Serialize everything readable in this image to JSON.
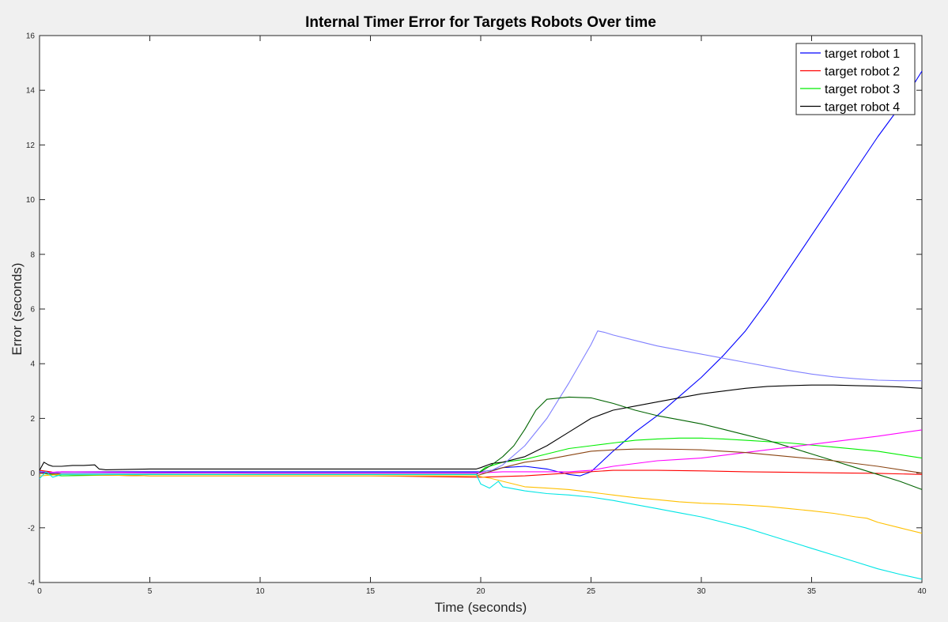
{
  "chart_data": {
    "type": "line",
    "title": "Internal Timer Error for Targets Robots Over time",
    "xlabel": "Time (seconds)",
    "ylabel": "Error (seconds)",
    "xlim": [
      0,
      40
    ],
    "ylim": [
      -4,
      16
    ],
    "xticks": [
      0,
      5,
      10,
      15,
      20,
      25,
      30,
      35,
      40
    ],
    "yticks": [
      -4,
      -2,
      0,
      2,
      4,
      6,
      8,
      10,
      12,
      14,
      16
    ],
    "grid": false,
    "legend_position": "top-right",
    "legend": [
      "target robot 1",
      "target robot 2",
      "target robot 3",
      "target robot 4"
    ],
    "series": [
      {
        "name": "target robot 1",
        "color": "#0000ff",
        "x": [
          0,
          0.5,
          1,
          2,
          5,
          10,
          15,
          19.5,
          20,
          20.5,
          21,
          22,
          23,
          23.5,
          24,
          24.5,
          25,
          26,
          27,
          28,
          29,
          30,
          31,
          32,
          33,
          34,
          35,
          36,
          37,
          38,
          39,
          40
        ],
        "y": [
          0.05,
          0.02,
          0.05,
          0.05,
          0.05,
          0.05,
          0.05,
          0.05,
          0.05,
          0.1,
          0.2,
          0.25,
          0.15,
          0.05,
          -0.05,
          -0.1,
          0.05,
          0.8,
          1.5,
          2.1,
          2.8,
          3.5,
          4.3,
          5.2,
          6.3,
          7.5,
          8.7,
          9.9,
          11.1,
          12.3,
          13.4,
          14.7
        ]
      },
      {
        "name": "target robot 2",
        "color": "#ff0000",
        "x": [
          0,
          0.5,
          1,
          5,
          10,
          15,
          20,
          22,
          24,
          26,
          28,
          30,
          32,
          34,
          36,
          38,
          40
        ],
        "y": [
          0.1,
          0.05,
          -0.05,
          -0.1,
          -0.1,
          -0.1,
          -0.15,
          -0.1,
          0.0,
          0.1,
          0.1,
          0.08,
          0.05,
          0.03,
          0.01,
          -0.01,
          -0.05
        ]
      },
      {
        "name": "target robot 3",
        "color": "#00ee00",
        "x": [
          0,
          0.5,
          1,
          5,
          10,
          15,
          19.8,
          20.2,
          21,
          22,
          23,
          24,
          25,
          26,
          27,
          28,
          29,
          30,
          31,
          32,
          34,
          36,
          38,
          40
        ],
        "y": [
          0.0,
          -0.05,
          -0.1,
          -0.05,
          -0.05,
          -0.05,
          -0.05,
          0.2,
          0.4,
          0.5,
          0.7,
          0.9,
          1.0,
          1.1,
          1.2,
          1.25,
          1.28,
          1.28,
          1.25,
          1.2,
          1.1,
          0.95,
          0.8,
          0.55
        ]
      },
      {
        "name": "target robot 4",
        "color": "#000000",
        "x": [
          0,
          0.2,
          0.4,
          0.6,
          1,
          1.5,
          2,
          2.5,
          2.7,
          3,
          5,
          10,
          15,
          19.8,
          20,
          20.5,
          21,
          22,
          23,
          24,
          25,
          26,
          27,
          28,
          29,
          30,
          31,
          32,
          33,
          34,
          35,
          36,
          37,
          38,
          39,
          40
        ],
        "y": [
          0.1,
          0.4,
          0.3,
          0.25,
          0.25,
          0.28,
          0.28,
          0.3,
          0.15,
          0.12,
          0.15,
          0.15,
          0.15,
          0.15,
          0.2,
          0.35,
          0.4,
          0.6,
          1.0,
          1.5,
          2.0,
          2.3,
          2.45,
          2.6,
          2.75,
          2.9,
          3.0,
          3.1,
          3.17,
          3.2,
          3.22,
          3.22,
          3.2,
          3.18,
          3.15,
          3.1
        ]
      },
      {
        "color": "#8080ff",
        "x": [
          0,
          1,
          5,
          10,
          15,
          19.8,
          20.5,
          21,
          22,
          23,
          24,
          25,
          25.3,
          25.6,
          26,
          27,
          28,
          29,
          30,
          31,
          32,
          33,
          34,
          35,
          36,
          37,
          38,
          39,
          40
        ],
        "y": [
          0.0,
          0.0,
          0.0,
          0.02,
          0.02,
          0.02,
          0.1,
          0.3,
          1.0,
          2.0,
          3.3,
          4.7,
          5.2,
          5.15,
          5.05,
          4.85,
          4.65,
          4.5,
          4.35,
          4.2,
          4.05,
          3.9,
          3.75,
          3.62,
          3.52,
          3.45,
          3.4,
          3.38,
          3.38
        ]
      },
      {
        "color": "#006400",
        "x": [
          0,
          1,
          5,
          10,
          15,
          19.8,
          20.5,
          21,
          21.5,
          22,
          22.5,
          23,
          24,
          25,
          26,
          27,
          28,
          29,
          30,
          31,
          32,
          33,
          34,
          35,
          36,
          37,
          38,
          39,
          40
        ],
        "y": [
          0.0,
          -0.05,
          -0.05,
          -0.05,
          -0.05,
          -0.05,
          0.3,
          0.6,
          1.0,
          1.6,
          2.3,
          2.7,
          2.78,
          2.75,
          2.55,
          2.3,
          2.1,
          1.95,
          1.8,
          1.6,
          1.4,
          1.2,
          0.95,
          0.7,
          0.45,
          0.2,
          -0.05,
          -0.3,
          -0.6
        ]
      },
      {
        "color": "#ff00ff",
        "x": [
          0,
          1,
          5,
          10,
          15,
          19.8,
          21,
          22,
          23,
          24,
          25,
          26,
          27,
          28,
          29,
          30,
          31,
          32,
          34,
          36,
          38,
          40
        ],
        "y": [
          0.0,
          0.05,
          0.02,
          0.0,
          0.0,
          0.0,
          0.05,
          0.05,
          0.05,
          0.05,
          0.1,
          0.25,
          0.35,
          0.45,
          0.5,
          0.55,
          0.65,
          0.75,
          0.95,
          1.15,
          1.35,
          1.58
        ]
      },
      {
        "color": "#8b4513",
        "x": [
          0,
          1,
          5,
          10,
          15,
          19.8,
          21,
          22,
          23,
          24,
          25,
          26,
          27,
          28,
          29,
          30,
          31,
          32,
          34,
          36,
          38,
          40
        ],
        "y": [
          0.0,
          -0.05,
          -0.1,
          -0.1,
          -0.1,
          -0.1,
          0.2,
          0.4,
          0.5,
          0.65,
          0.8,
          0.85,
          0.88,
          0.88,
          0.87,
          0.85,
          0.8,
          0.75,
          0.6,
          0.45,
          0.25,
          0.0
        ]
      },
      {
        "color": "#ffc000",
        "x": [
          0,
          1,
          5,
          10,
          15,
          19.8,
          20.5,
          21,
          22,
          23,
          24,
          25,
          26,
          27,
          28,
          29,
          30,
          31,
          32,
          33,
          34,
          35,
          36,
          37,
          37.5,
          38,
          39,
          40
        ],
        "y": [
          -0.1,
          -0.05,
          -0.1,
          -0.1,
          -0.1,
          -0.1,
          -0.2,
          -0.3,
          -0.5,
          -0.55,
          -0.6,
          -0.7,
          -0.8,
          -0.9,
          -0.97,
          -1.05,
          -1.1,
          -1.13,
          -1.17,
          -1.22,
          -1.3,
          -1.38,
          -1.47,
          -1.6,
          -1.65,
          -1.8,
          -2.0,
          -2.2
        ]
      },
      {
        "color": "#00e5e5",
        "x": [
          0,
          0.3,
          0.6,
          1,
          5,
          10,
          15,
          19.8,
          20,
          20.4,
          20.8,
          21,
          22,
          23,
          24,
          25,
          26,
          27,
          28,
          29,
          30,
          31,
          32,
          33,
          34,
          35,
          36,
          37,
          38,
          39,
          40
        ],
        "y": [
          -0.2,
          0.05,
          -0.15,
          -0.05,
          -0.05,
          -0.05,
          -0.05,
          -0.05,
          -0.4,
          -0.55,
          -0.3,
          -0.5,
          -0.65,
          -0.75,
          -0.8,
          -0.88,
          -1.0,
          -1.15,
          -1.3,
          -1.45,
          -1.6,
          -1.8,
          -2.0,
          -2.25,
          -2.5,
          -2.75,
          -3.0,
          -3.25,
          -3.5,
          -3.7,
          -3.88
        ]
      }
    ]
  }
}
